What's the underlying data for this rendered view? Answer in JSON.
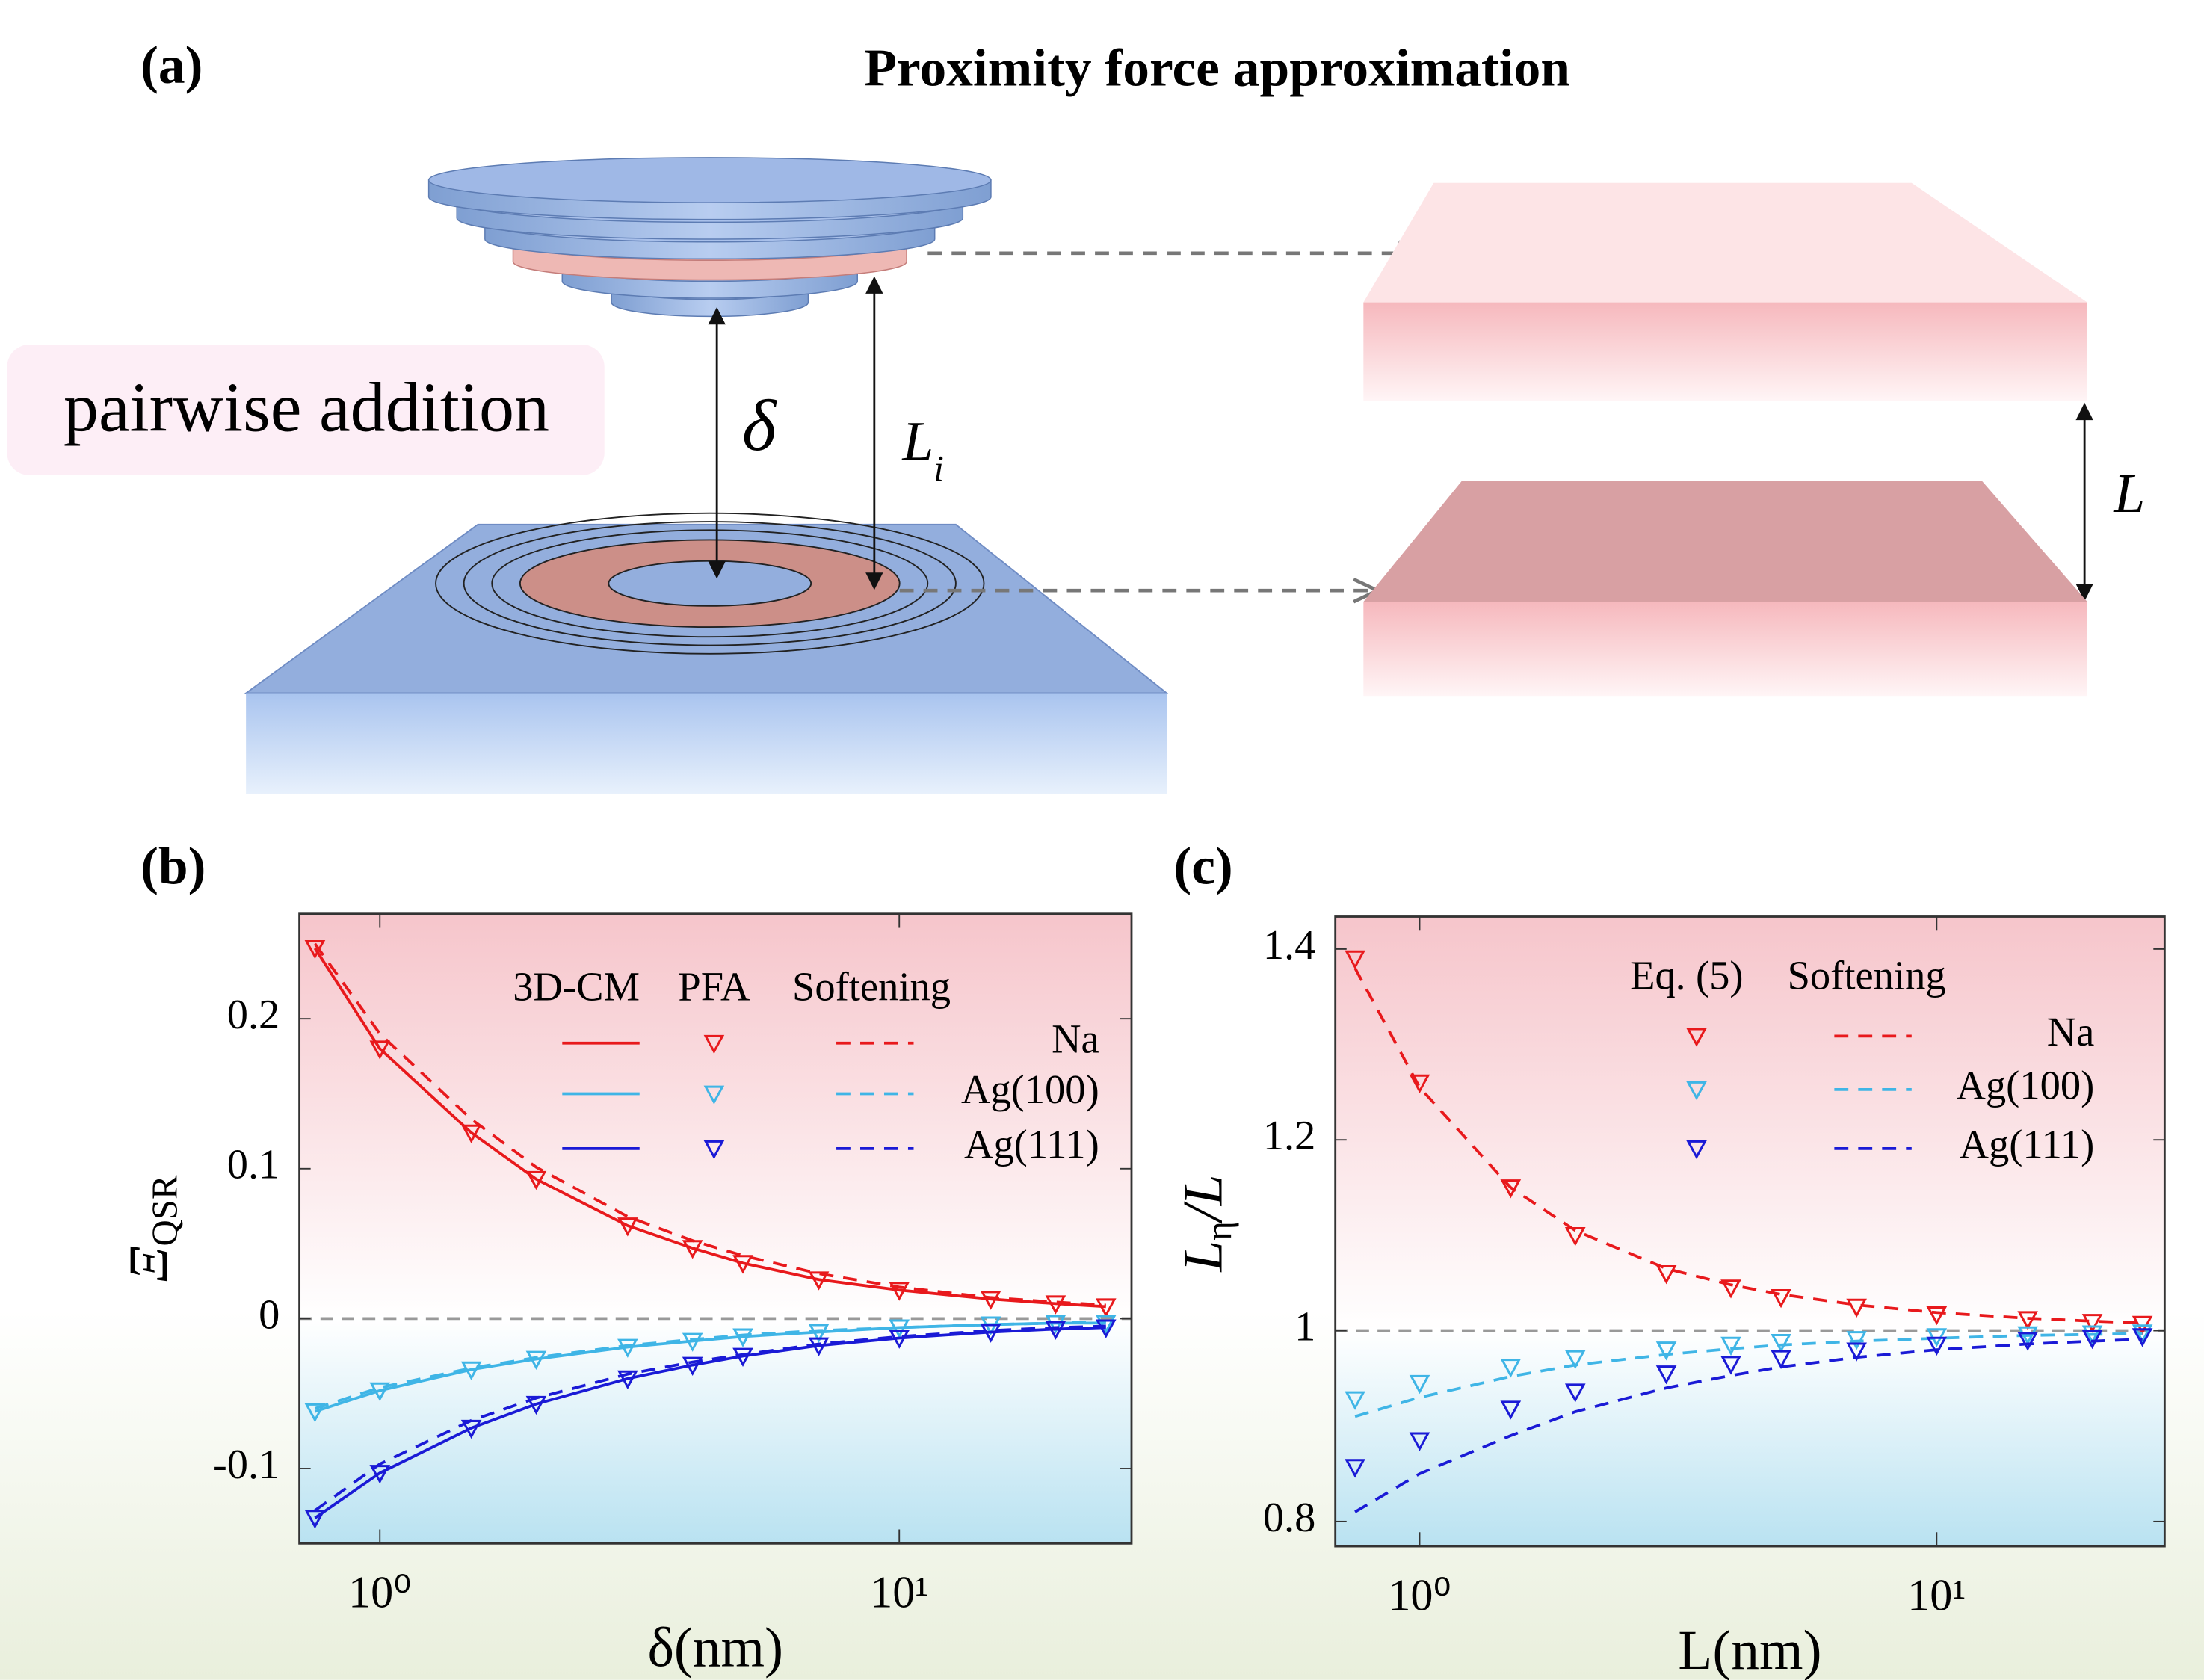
{
  "figure": {
    "panel_a": "(a)",
    "title": "Proximity force approximation",
    "pairwise": "pairwise addition",
    "delta": "δ",
    "li_main": "L",
    "li_sub": "i",
    "gap": "L",
    "panel_b": "(b)",
    "panel_c": "(c)"
  },
  "chart_data": [
    {
      "type": "line",
      "x_label": "δ(nm)",
      "y_label": "Ξ",
      "y_label_sub": "QSR",
      "log_x": true,
      "xlim": [
        0.7,
        28
      ],
      "ylim": [
        -0.15,
        0.27
      ],
      "xticks": [
        {
          "value": 1,
          "label": "10⁰"
        },
        {
          "value": 10,
          "label": "10¹"
        }
      ],
      "yticks": [
        -0.1,
        0,
        0.1,
        0.2
      ],
      "reference_line": 0,
      "legend_columns": [
        "3D-CM",
        "PFA",
        "Softening"
      ],
      "x": [
        0.75,
        1,
        1.5,
        2,
        3,
        4,
        5,
        7,
        10,
        15,
        20,
        25
      ],
      "series": [
        {
          "name": "Na",
          "color": "#e8191c",
          "line_values": [
            0.247,
            0.18,
            0.124,
            0.093,
            0.062,
            0.047,
            0.037,
            0.026,
            0.019,
            0.013,
            0.01,
            0.008
          ],
          "values": [
            0.247,
            0.18,
            0.124,
            0.093,
            0.062,
            0.047,
            0.037,
            0.026,
            0.019,
            0.013,
            0.01,
            0.008
          ],
          "softening_values": [
            0.25,
            0.19,
            0.133,
            0.101,
            0.068,
            0.052,
            0.042,
            0.03,
            0.021,
            0.014,
            0.011,
            0.009
          ]
        },
        {
          "name": "Ag(100)",
          "color": "#3fb5e6",
          "line_values": [
            -0.062,
            -0.048,
            -0.034,
            -0.027,
            -0.019,
            -0.015,
            -0.012,
            -0.009,
            -0.006,
            -0.004,
            -0.003,
            -0.003
          ],
          "values": [
            -0.062,
            -0.048,
            -0.034,
            -0.027,
            -0.019,
            -0.015,
            -0.012,
            -0.009,
            -0.006,
            -0.004,
            -0.003,
            -0.003
          ],
          "softening_values": [
            -0.06,
            -0.046,
            -0.033,
            -0.026,
            -0.018,
            -0.014,
            -0.011,
            -0.008,
            -0.006,
            -0.004,
            -0.003,
            -0.002
          ]
        },
        {
          "name": "Ag(111)",
          "color": "#1a1ad6",
          "line_values": [
            -0.133,
            -0.103,
            -0.073,
            -0.057,
            -0.04,
            -0.031,
            -0.025,
            -0.018,
            -0.013,
            -0.009,
            -0.007,
            -0.006
          ],
          "values": [
            -0.133,
            -0.103,
            -0.073,
            -0.057,
            -0.04,
            -0.031,
            -0.025,
            -0.018,
            -0.013,
            -0.009,
            -0.007,
            -0.006
          ],
          "softening_values": [
            -0.128,
            -0.097,
            -0.068,
            -0.053,
            -0.037,
            -0.029,
            -0.024,
            -0.017,
            -0.012,
            -0.008,
            -0.006,
            -0.005
          ]
        }
      ]
    },
    {
      "type": "line",
      "x_label": "L(nm)",
      "y_label": "L",
      "y_label_sub": "η",
      "y_label_tail": "/L",
      "log_x": true,
      "xlim": [
        0.687,
        27.6
      ],
      "ylim": [
        0.774,
        1.434
      ],
      "xticks": [
        {
          "value": 1,
          "label": "10⁰"
        },
        {
          "value": 10,
          "label": "10¹"
        }
      ],
      "yticks": [
        0.8,
        1,
        1.2,
        1.4
      ],
      "reference_line": 1,
      "legend_columns": [
        "Eq. (5)",
        "Softening"
      ],
      "x": [
        0.75,
        1,
        1.5,
        2,
        3,
        4,
        5,
        7,
        10,
        15,
        20,
        25
      ],
      "series": [
        {
          "name": "Na",
          "color": "#e8191c",
          "values": [
            1.39,
            1.26,
            1.15,
            1.1,
            1.06,
            1.045,
            1.035,
            1.025,
            1.017,
            1.012,
            1.009,
            1.007
          ],
          "softening_values": [
            1.38,
            1.255,
            1.15,
            1.105,
            1.065,
            1.048,
            1.038,
            1.027,
            1.019,
            1.013,
            1.01,
            1.008
          ]
        },
        {
          "name": "Ag(100)",
          "color": "#3fb5e6",
          "values": [
            0.928,
            0.945,
            0.962,
            0.971,
            0.98,
            0.985,
            0.988,
            0.991,
            0.994,
            0.996,
            0.997,
            0.998
          ],
          "softening_values": [
            0.91,
            0.93,
            0.952,
            0.964,
            0.975,
            0.981,
            0.985,
            0.989,
            0.992,
            0.995,
            0.996,
            0.997
          ]
        },
        {
          "name": "Ag(111)",
          "color": "#1a1ad6",
          "values": [
            0.857,
            0.885,
            0.918,
            0.936,
            0.955,
            0.965,
            0.971,
            0.979,
            0.985,
            0.99,
            0.992,
            0.994
          ],
          "softening_values": [
            0.81,
            0.85,
            0.89,
            0.915,
            0.94,
            0.953,
            0.962,
            0.972,
            0.98,
            0.986,
            0.989,
            0.991
          ]
        }
      ]
    }
  ]
}
